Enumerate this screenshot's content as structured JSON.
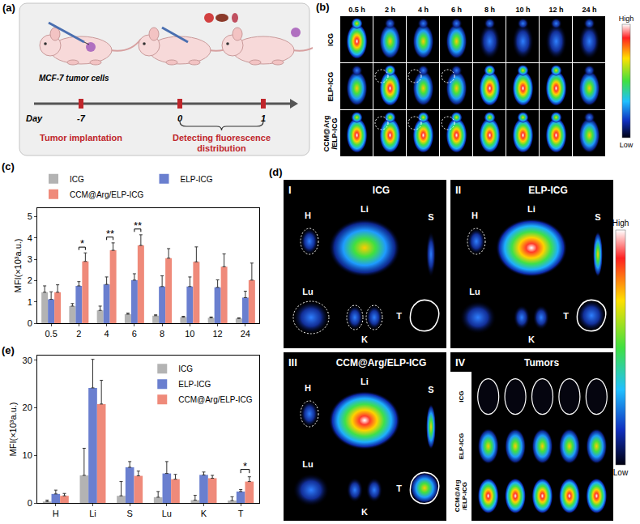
{
  "figure": {
    "panel_letters": [
      "(a)",
      "(b)",
      "(c)",
      "(d)",
      "(e)"
    ],
    "schematic": {
      "cell_label": "MCF-7 tumor cells",
      "axis_label": "Day",
      "days": [
        "-7",
        "0",
        "1"
      ],
      "phases": [
        "Tumor implantation",
        "Detecting fluorescence distribution"
      ]
    },
    "imaging": {
      "times": [
        "0.5 h",
        "2 h",
        "4 h",
        "6 h",
        "8 h",
        "10 h",
        "12 h",
        "24 h"
      ],
      "rows": [
        "ICG",
        "ELP-ICG",
        "CCM@Arg/ELP-ICG"
      ],
      "colorbar": [
        "High",
        "Low"
      ]
    },
    "organs": {
      "panels": [
        {
          "numeral": "I",
          "title": "ICG",
          "labels": [
            "H",
            "Li",
            "S",
            "Lu",
            "K",
            "T"
          ]
        },
        {
          "numeral": "II",
          "title": "ELP-ICG",
          "labels": [
            "H",
            "Li",
            "S",
            "Lu",
            "K",
            "T"
          ]
        },
        {
          "numeral": "III",
          "title": "CCM@Arg/ELP-ICG",
          "labels": [
            "H",
            "Li",
            "S",
            "Lu",
            "K",
            "T"
          ]
        }
      ],
      "tumors": {
        "numeral": "IV",
        "title": "Tumors",
        "rows": [
          "ICG",
          "ELP-ICG",
          "CCM@Arg/ELP-ICG"
        ]
      },
      "colorbar": [
        "High",
        "Low"
      ]
    }
  },
  "chart_data": [
    {
      "type": "bar",
      "ylabel": "MFI(×10³a.u.)",
      "categories": [
        "0.5",
        "2",
        "4",
        "6",
        "8",
        "10",
        "12",
        "24"
      ],
      "series": [
        {
          "name": "ICG",
          "color": "#b3b3b3",
          "values": [
            1.45,
            0.8,
            0.6,
            0.42,
            0.35,
            0.28,
            0.25,
            0.22
          ],
          "errors": [
            0.3,
            0.12,
            0.2,
            0.05,
            0.04,
            0.04,
            0.04,
            0.03
          ]
        },
        {
          "name": "ELP-ICG",
          "color": "#6a7fcf",
          "values": [
            1.12,
            1.75,
            1.82,
            2.02,
            1.72,
            1.72,
            1.68,
            1.2
          ],
          "errors": [
            0.35,
            0.2,
            0.35,
            0.3,
            0.5,
            0.45,
            0.35,
            0.3
          ]
        },
        {
          "name": "CCM@Arg/ELP-ICG",
          "color": "#ef8a7a",
          "values": [
            1.45,
            2.9,
            3.42,
            3.65,
            3.05,
            2.88,
            2.65,
            2.02
          ],
          "errors": [
            0.35,
            0.4,
            0.35,
            0.5,
            0.45,
            0.7,
            0.6,
            0.8
          ]
        }
      ],
      "ylim": [
        0,
        5.4
      ],
      "yticks": [
        0,
        1,
        2,
        3,
        4,
        5
      ],
      "grid": false,
      "legend": "top",
      "annotations": [
        {
          "category": "2",
          "text": "*",
          "series": [
            "ELP-ICG",
            "CCM@Arg/ELP-ICG"
          ]
        },
        {
          "category": "4",
          "text": "**",
          "series": [
            "ELP-ICG",
            "CCM@Arg/ELP-ICG"
          ]
        },
        {
          "category": "6",
          "text": "**",
          "series": [
            "ELP-ICG",
            "CCM@Arg/ELP-ICG"
          ]
        }
      ]
    },
    {
      "type": "bar",
      "ylabel": "MFI(×10³a.u.)",
      "categories": [
        "H",
        "Li",
        "S",
        "Lu",
        "K",
        "T"
      ],
      "series": [
        {
          "name": "ICG",
          "color": "#b3b3b3",
          "values": [
            0.3,
            5.8,
            1.5,
            1.2,
            0.6,
            0.5
          ],
          "errors": [
            0.3,
            5.7,
            3,
            1.2,
            1,
            0.8
          ]
        },
        {
          "name": "ELP-ICG",
          "color": "#6a7fcf",
          "values": [
            1.9,
            24.2,
            7.5,
            6.2,
            5.9,
            2.4
          ],
          "errors": [
            0.8,
            6,
            1.2,
            2.5,
            0.6,
            0.4
          ]
        },
        {
          "name": "CCM@Arg/ELP-ICG",
          "color": "#ef8a7a",
          "values": [
            1.5,
            20.8,
            5.7,
            5,
            5.2,
            4.5
          ],
          "errors": [
            0.5,
            5,
            1,
            1,
            0.6,
            1
          ]
        }
      ],
      "ylim": [
        0,
        31
      ],
      "yticks": [
        0,
        10,
        20,
        30
      ],
      "grid": false,
      "legend": "upper right",
      "annotations": [
        {
          "category": "T",
          "text": "*",
          "series": [
            "ELP-ICG",
            "CCM@Arg/ELP-ICG"
          ]
        }
      ]
    }
  ]
}
